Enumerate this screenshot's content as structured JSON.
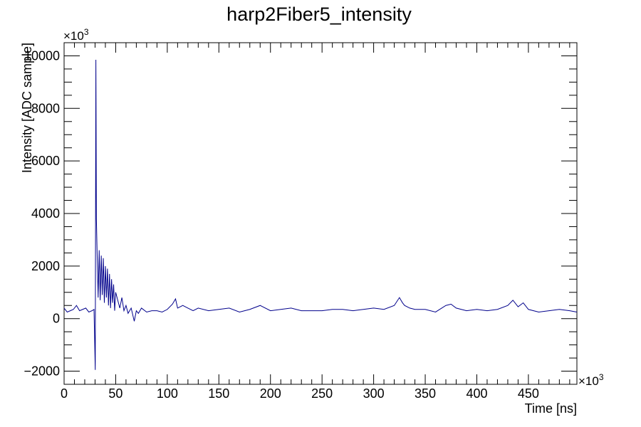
{
  "chart_data": {
    "type": "line",
    "title": "harp2Fiber5_intensity",
    "xlabel": "Time [ns]",
    "ylabel": "Intensity [ADC sample]",
    "x_multiplier_label": "×10",
    "x_multiplier_exp": "3",
    "y_multiplier_label": "×10",
    "y_multiplier_exp": "3",
    "xlim": [
      0,
      497
    ],
    "ylim": [
      -2500,
      10500
    ],
    "x_ticks": [
      0,
      50,
      100,
      150,
      200,
      250,
      300,
      350,
      400,
      450
    ],
    "x_tick_labels": [
      "0",
      "50",
      "100",
      "150",
      "200",
      "250",
      "300",
      "350",
      "400",
      "450"
    ],
    "y_ticks": [
      -2000,
      0,
      2000,
      4000,
      6000,
      8000,
      10000
    ],
    "y_tick_labels": [
      "−2000",
      "0",
      "2000",
      "4000",
      "6000",
      "8000",
      "10000"
    ],
    "grid": false,
    "legend": "none",
    "line_color": "#00008b",
    "series": [
      {
        "x": [
          0,
          3,
          6,
          9,
          12,
          15,
          18,
          21,
          24,
          27,
          29,
          30.2,
          30.8,
          31.3,
          32,
          33,
          34,
          35,
          36,
          37,
          38,
          39,
          40,
          41,
          42,
          43,
          44,
          45,
          46,
          47,
          48,
          49,
          50,
          52,
          54,
          56,
          58,
          60,
          62,
          65,
          68,
          70,
          72,
          75,
          80,
          85,
          90,
          95,
          100,
          105,
          108,
          110,
          115,
          120,
          125,
          130,
          140,
          150,
          160,
          170,
          180,
          190,
          200,
          210,
          220,
          230,
          240,
          250,
          260,
          270,
          280,
          290,
          300,
          310,
          320,
          325,
          328,
          330,
          335,
          340,
          350,
          360,
          370,
          375,
          380,
          390,
          400,
          410,
          420,
          430,
          435,
          440,
          445,
          450,
          460,
          470,
          480,
          490,
          497
        ],
        "y": [
          400,
          250,
          300,
          350,
          500,
          300,
          350,
          400,
          250,
          300,
          350,
          -1950,
          9850,
          3800,
          2500,
          800,
          2600,
          700,
          2400,
          900,
          2300,
          600,
          2000,
          800,
          1900,
          500,
          1700,
          400,
          1500,
          600,
          1300,
          300,
          1000,
          700,
          400,
          800,
          300,
          500,
          200,
          400,
          -100,
          300,
          200,
          400,
          250,
          300,
          300,
          250,
          350,
          550,
          750,
          400,
          500,
          400,
          300,
          400,
          300,
          350,
          400,
          250,
          350,
          500,
          300,
          350,
          400,
          300,
          300,
          300,
          350,
          350,
          300,
          350,
          400,
          350,
          500,
          800,
          600,
          500,
          400,
          350,
          350,
          250,
          500,
          550,
          400,
          300,
          350,
          300,
          350,
          500,
          700,
          450,
          600,
          350,
          250,
          300,
          350,
          300,
          250
        ]
      }
    ]
  }
}
